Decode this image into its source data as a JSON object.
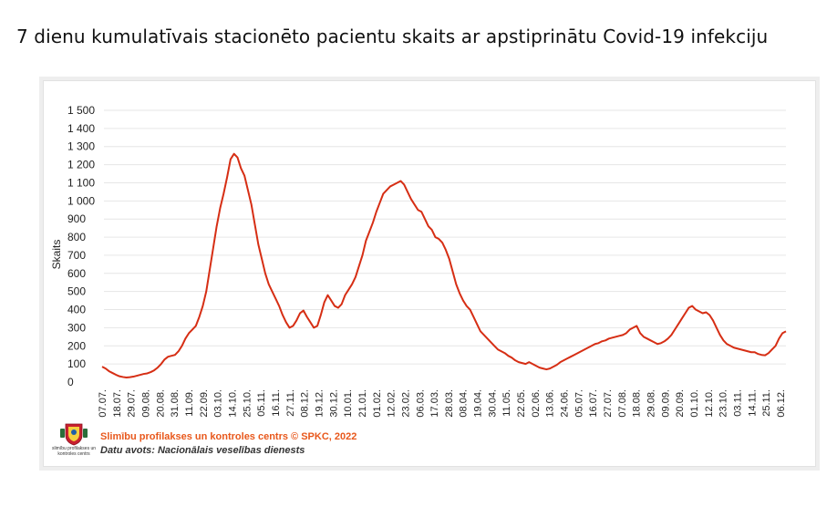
{
  "title": "7 dienu kumulatīvais stacionēto pacientu skaits ar apstiprinātu Covid-19 infekciju",
  "footer": {
    "credit": "Slimību profilakses un kontroles centrs © SPKC, 2022",
    "source": "Datu avots: Nacionālais veselības dienests",
    "logo_text": "slimību profilakses un kontroles centrs"
  },
  "colors": {
    "line": "#d62e14",
    "credit": "#e8581c",
    "grid": "#e6e6e6"
  },
  "chart_data": {
    "type": "line",
    "title": "",
    "xlabel": "",
    "ylabel": "Skaits",
    "ylim": [
      0,
      1500
    ],
    "yticks": [
      0,
      100,
      200,
      300,
      400,
      500,
      600,
      700,
      800,
      900,
      1000,
      1100,
      1200,
      1300,
      1400,
      1500
    ],
    "ytick_labels": [
      "0",
      "100",
      "200",
      "300",
      "400",
      "500",
      "600",
      "700",
      "800",
      "900",
      "1 000",
      "1 100",
      "1 200",
      "1 300",
      "1 400",
      "1 500"
    ],
    "xtick_labels": [
      "07.07.",
      "18.07.",
      "29.07.",
      "09.08.",
      "20.08.",
      "31.08.",
      "11.09.",
      "22.09.",
      "03.10.",
      "14.10.",
      "25.10.",
      "05.11.",
      "16.11.",
      "27.11.",
      "08.12.",
      "19.12.",
      "30.12.",
      "10.01.",
      "21.01.",
      "01.02.",
      "12.02.",
      "23.02.",
      "06.03.",
      "17.03.",
      "28.03.",
      "08.04.",
      "19.04.",
      "30.04.",
      "11.05.",
      "22.05.",
      "02.06.",
      "13.06.",
      "24.06.",
      "05.07.",
      "16.07.",
      "27.07.",
      "07.08.",
      "18.08.",
      "29.08.",
      "09.09.",
      "20.09.",
      "01.10.",
      "12.10.",
      "23.10.",
      "03.11.",
      "14.11.",
      "25.11.",
      "06.12."
    ],
    "grid": true,
    "series": [
      {
        "color": "#d62e14",
        "values": [
          85,
          75,
          60,
          50,
          40,
          32,
          28,
          25,
          27,
          30,
          35,
          40,
          45,
          48,
          55,
          65,
          80,
          100,
          125,
          140,
          145,
          150,
          170,
          200,
          240,
          270,
          290,
          310,
          360,
          420,
          500,
          620,
          740,
          860,
          960,
          1040,
          1130,
          1230,
          1260,
          1240,
          1180,
          1140,
          1060,
          980,
          870,
          760,
          680,
          600,
          540,
          500,
          460,
          420,
          370,
          330,
          300,
          310,
          340,
          380,
          395,
          360,
          330,
          300,
          310,
          370,
          440,
          480,
          450,
          420,
          410,
          430,
          480,
          510,
          540,
          580,
          640,
          700,
          780,
          830,
          880,
          940,
          990,
          1040,
          1060,
          1080,
          1090,
          1100,
          1110,
          1090,
          1050,
          1010,
          980,
          950,
          940,
          900,
          860,
          840,
          800,
          790,
          770,
          730,
          680,
          610,
          540,
          490,
          450,
          420,
          400,
          360,
          320,
          280,
          260,
          240,
          220,
          200,
          180,
          170,
          160,
          145,
          135,
          120,
          110,
          105,
          100,
          110,
          100,
          90,
          80,
          75,
          70,
          75,
          85,
          95,
          110,
          120,
          130,
          140,
          150,
          160,
          170,
          180,
          190,
          200,
          210,
          215,
          225,
          230,
          240,
          245,
          250,
          255,
          260,
          270,
          290,
          300,
          310,
          270,
          250,
          240,
          230,
          220,
          210,
          215,
          225,
          240,
          260,
          290,
          320,
          350,
          380,
          410,
          420,
          400,
          390,
          380,
          385,
          370,
          340,
          300,
          260,
          230,
          210,
          200,
          190,
          185,
          180,
          175,
          170,
          165,
          165,
          155,
          150,
          148,
          160,
          180,
          200,
          240,
          270,
          280
        ]
      }
    ]
  }
}
